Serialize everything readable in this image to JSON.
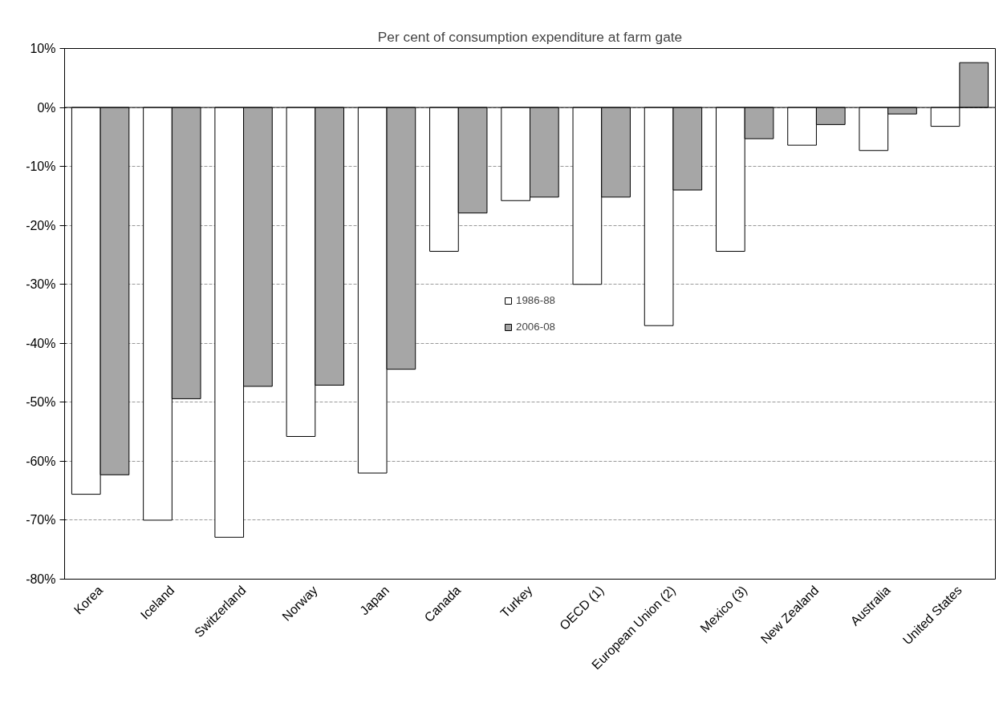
{
  "chart_data": {
    "type": "bar",
    "title": "Per cent of consumption expenditure at farm gate",
    "categories": [
      "Korea",
      "Iceland",
      "Switzerland",
      "Norway",
      "Japan",
      "Canada",
      "Turkey",
      "OECD (1)",
      "European Union (2)",
      "Mexico (3)",
      "New Zealand",
      "Australia",
      "United States"
    ],
    "series": [
      {
        "name": "1986-88",
        "color": "#ffffff",
        "values": [
          -65.6,
          -70.0,
          -72.9,
          -55.8,
          -62.0,
          -24.4,
          -15.8,
          -30.0,
          -37.0,
          -24.4,
          -6.4,
          -7.3,
          -3.2
        ]
      },
      {
        "name": "2006-08",
        "color": "#a6a6a6",
        "values": [
          -62.3,
          -49.4,
          -47.3,
          -47.1,
          -44.4,
          -17.9,
          -15.2,
          -15.2,
          -14.0,
          -5.3,
          -2.9,
          -1.1,
          7.6
        ]
      }
    ],
    "ylim": [
      -80,
      10
    ],
    "yticks": [
      {
        "value": -80,
        "label": "-80%"
      },
      {
        "value": -70,
        "label": "-70%"
      },
      {
        "value": -60,
        "label": "-60%"
      },
      {
        "value": -50,
        "label": "-50%"
      },
      {
        "value": -40,
        "label": "-40%"
      },
      {
        "value": -30,
        "label": "-30%"
      },
      {
        "value": -20,
        "label": "-20%"
      },
      {
        "value": -10,
        "label": "-10%"
      },
      {
        "value": 0,
        "label": "0%"
      },
      {
        "value": 10,
        "label": "10%"
      }
    ],
    "grid": "y",
    "legend": "center"
  }
}
